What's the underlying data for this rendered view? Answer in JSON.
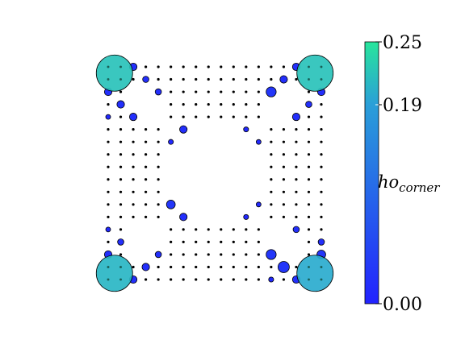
{
  "chart_data": {
    "type": "scatter",
    "xlim": [
      0,
      17
    ],
    "ylim": [
      0,
      17
    ],
    "grid_n": 18,
    "hole_ranges": [
      [
        5,
        12
      ]
    ],
    "small_hole_ranges": [
      [
        2,
        4
      ],
      [
        13,
        15
      ]
    ],
    "axes_visible": false,
    "colorbar": {
      "label": "ho_corner",
      "label_main": "ho",
      "label_sub": "corner",
      "range": [
        0.0,
        0.25
      ],
      "ticks": [
        0.0,
        0.19,
        0.25
      ],
      "tick_labels": [
        "0.00",
        "0.19",
        "0.25"
      ],
      "colors": [
        "#2222ff",
        "#2a9fd8",
        "#28e59c"
      ]
    },
    "highlighted": [
      {
        "x": 0.5,
        "y": 16.5,
        "value": 0.22,
        "size": 1.45
      },
      {
        "x": 16.5,
        "y": 16.5,
        "value": 0.22,
        "size": 1.45
      },
      {
        "x": 0.5,
        "y": 0.5,
        "value": 0.21,
        "size": 1.45
      },
      {
        "x": 16.5,
        "y": 0.5,
        "value": 0.2,
        "size": 1.45
      },
      {
        "x": 2,
        "y": 17,
        "value": 0.02,
        "size": 0.3
      },
      {
        "x": 15,
        "y": 17,
        "value": 0.02,
        "size": 0.3
      },
      {
        "x": 3,
        "y": 16,
        "value": 0.02,
        "size": 0.25
      },
      {
        "x": 14,
        "y": 16,
        "value": 0.02,
        "size": 0.3
      },
      {
        "x": 0,
        "y": 15,
        "value": 0.02,
        "size": 0.3
      },
      {
        "x": 4,
        "y": 15,
        "value": 0.02,
        "size": 0.25
      },
      {
        "x": 13,
        "y": 15,
        "value": 0.03,
        "size": 0.4
      },
      {
        "x": 17,
        "y": 15,
        "value": 0.02,
        "size": 0.3
      },
      {
        "x": 1,
        "y": 14,
        "value": 0.02,
        "size": 0.3
      },
      {
        "x": 16,
        "y": 14,
        "value": 0.02,
        "size": 0.25
      },
      {
        "x": 2,
        "y": 13,
        "value": 0.02,
        "size": 0.3
      },
      {
        "x": 15,
        "y": 13,
        "value": 0.02,
        "size": 0.3
      },
      {
        "x": 0,
        "y": 13,
        "value": 0.01,
        "size": 0.15
      },
      {
        "x": 6,
        "y": 12,
        "value": 0.02,
        "size": 0.3
      },
      {
        "x": 11,
        "y": 12,
        "value": 0.01,
        "size": 0.2
      },
      {
        "x": 5,
        "y": 11,
        "value": 0.01,
        "size": 0.2
      },
      {
        "x": 12,
        "y": 11,
        "value": 0.01,
        "size": 0.15
      },
      {
        "x": 5,
        "y": 6,
        "value": 0.03,
        "size": 0.35
      },
      {
        "x": 12,
        "y": 6,
        "value": 0.01,
        "size": 0.15
      },
      {
        "x": 6,
        "y": 5,
        "value": 0.02,
        "size": 0.3
      },
      {
        "x": 11,
        "y": 5,
        "value": 0.01,
        "size": 0.2
      },
      {
        "x": 0,
        "y": 4,
        "value": 0.01,
        "size": 0.15
      },
      {
        "x": 15,
        "y": 4,
        "value": 0.02,
        "size": 0.25
      },
      {
        "x": 1,
        "y": 3,
        "value": 0.02,
        "size": 0.25
      },
      {
        "x": 17,
        "y": 3,
        "value": 0.02,
        "size": 0.25
      },
      {
        "x": 0,
        "y": 2,
        "value": 0.02,
        "size": 0.3
      },
      {
        "x": 4,
        "y": 2,
        "value": 0.02,
        "size": 0.25
      },
      {
        "x": 13,
        "y": 2,
        "value": 0.03,
        "size": 0.4
      },
      {
        "x": 17,
        "y": 2,
        "value": 0.03,
        "size": 0.35
      },
      {
        "x": 3,
        "y": 1,
        "value": 0.02,
        "size": 0.3
      },
      {
        "x": 14,
        "y": 1,
        "value": 0.03,
        "size": 0.45
      },
      {
        "x": 2,
        "y": 0,
        "value": 0.02,
        "size": 0.3
      },
      {
        "x": 13,
        "y": 0,
        "value": 0.01,
        "size": 0.2
      },
      {
        "x": 15,
        "y": 0,
        "value": 0.02,
        "size": 0.3
      }
    ]
  }
}
